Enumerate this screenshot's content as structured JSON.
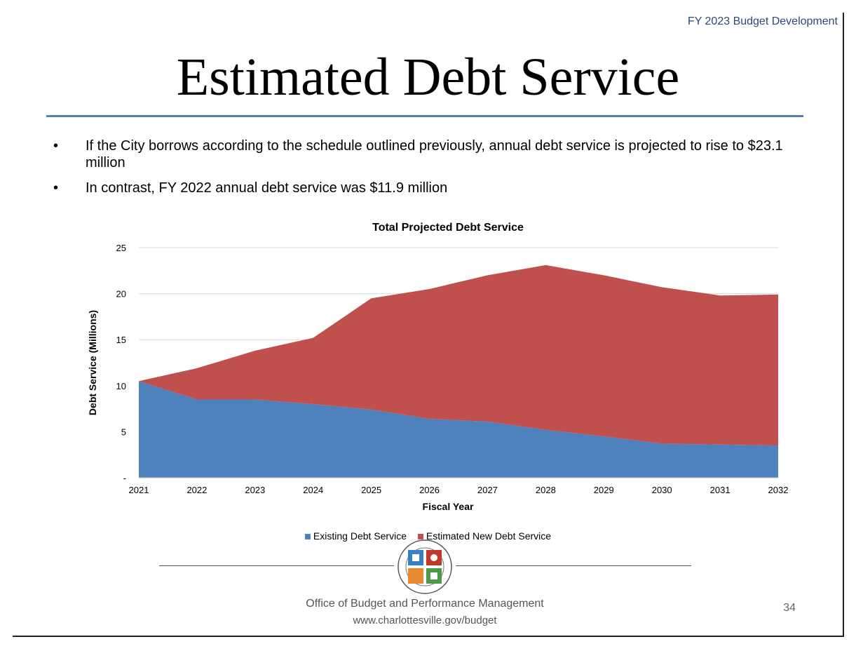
{
  "header": {
    "tag": "FY 2023 Budget Development"
  },
  "slide": {
    "title": "Estimated Debt Service",
    "page_number": "34"
  },
  "bullets": [
    "If the City borrows according to the schedule outlined previously, annual debt service is projected to rise to $23.1 million",
    "In contrast, FY 2022 annual debt service was $11.9 million"
  ],
  "bullet_marker": "•",
  "chart_data": {
    "type": "area",
    "stacked": true,
    "title": "Total Projected Debt Service",
    "xlabel": "Fiscal Year",
    "ylabel": "Debt Service (Millions)",
    "categories": [
      "2021",
      "2022",
      "2023",
      "2024",
      "2025",
      "2026",
      "2027",
      "2028",
      "2029",
      "2030",
      "2031",
      "2032"
    ],
    "yticks": [
      {
        "value": 0,
        "label": "-"
      },
      {
        "value": 5,
        "label": "5"
      },
      {
        "value": 10,
        "label": "10"
      },
      {
        "value": 15,
        "label": "15"
      },
      {
        "value": 20,
        "label": "20"
      },
      {
        "value": 25,
        "label": "25"
      }
    ],
    "ylim": [
      0,
      25
    ],
    "grid": true,
    "legend_position": "bottom",
    "series": [
      {
        "name": "Existing Debt Service",
        "color": "#4f81bd",
        "values": [
          10.5,
          8.5,
          8.5,
          8.0,
          7.4,
          6.4,
          6.1,
          5.2,
          4.5,
          3.7,
          3.6,
          3.5
        ]
      },
      {
        "name": "Estimated New Debt Service",
        "color": "#c0504d",
        "values": [
          0.0,
          3.4,
          5.3,
          7.2,
          12.1,
          14.1,
          15.9,
          17.9,
          17.5,
          17.0,
          16.2,
          16.4
        ]
      }
    ]
  },
  "footer": {
    "office": "Office of Budget and Performance Management",
    "url": "www.charlottesville.gov/budget",
    "seal_icon": "city-seal-icon"
  },
  "colors": {
    "title_rule": "#5a7fae",
    "header_tag": "#2a4a7a"
  }
}
